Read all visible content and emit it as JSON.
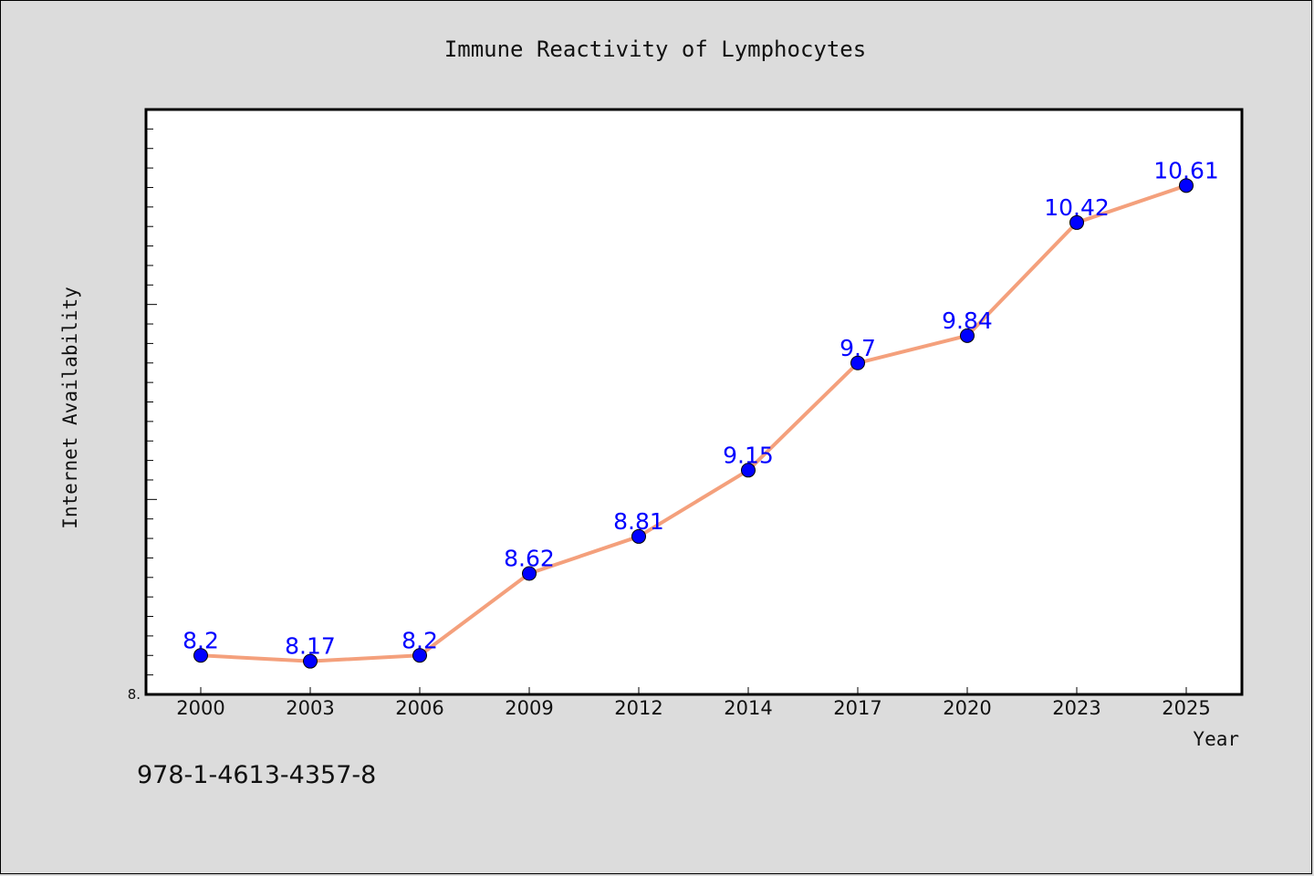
{
  "page": {
    "note": "978-1-4613-4357-8"
  },
  "colors": {
    "background": "#dcdcdc",
    "plot_background": "#ffffff",
    "line": "#f4a07c",
    "marker": "#0000ff",
    "data_label": "#0000ff",
    "text": "#111111"
  },
  "chart_data": {
    "type": "line",
    "title": "Immune Reactivity of Lymphocytes",
    "xlabel": "Year",
    "ylabel": "Internet Availability",
    "categories": [
      "2000",
      "2003",
      "2006",
      "2009",
      "2012",
      "2014",
      "2017",
      "2020",
      "2023",
      "2025"
    ],
    "series": [
      {
        "values": [
          8.2,
          8.17,
          8.2,
          8.62,
          8.81,
          9.15,
          9.7,
          9.84,
          10.42,
          10.61
        ],
        "labels": [
          "8.2",
          "8.17",
          "8.2",
          "8.62",
          "8.81",
          "9.15",
          "9.7",
          "9.84",
          "10.42",
          "10.61"
        ]
      }
    ],
    "ylim": [
      8.0,
      11.0
    ],
    "y_tick_label": "8.",
    "grid": false,
    "legend": "none",
    "marker": "circle"
  }
}
